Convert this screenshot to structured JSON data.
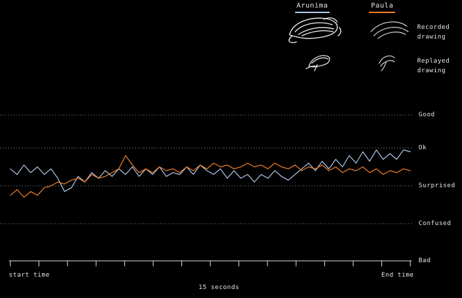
{
  "legend": {
    "items": [
      {
        "label": "Arunima",
        "color": "#aec7e8"
      },
      {
        "label": "Paula",
        "color": "#f07e26"
      }
    ]
  },
  "rows": {
    "recorded_label": "Recorded drawing",
    "replayed_label": "Replayed drawing"
  },
  "axis": {
    "start_label": "start time",
    "end_label": "End time",
    "duration_label": "15 seconds"
  },
  "chart_data": {
    "type": "line",
    "title": "",
    "x_range_seconds": [
      0,
      15
    ],
    "xlabel": "15 seconds",
    "y_categories": [
      "Bad",
      "Confused",
      "Surprised",
      "Ok",
      "Good"
    ],
    "y_value_map": {
      "Bad": 0,
      "Confused": 1,
      "Surprised": 2,
      "Ok": 3,
      "Good": 4
    },
    "grid": "dotted horizontal lines at each category level",
    "legend_position": "top",
    "series": [
      {
        "name": "Arunima",
        "color": "#aec7e8",
        "values": [
          2.45,
          2.3,
          2.55,
          2.35,
          2.5,
          2.3,
          2.45,
          2.2,
          1.85,
          1.95,
          2.25,
          2.1,
          2.35,
          2.2,
          2.4,
          2.25,
          2.45,
          2.3,
          2.5,
          2.25,
          2.45,
          2.3,
          2.5,
          2.25,
          2.35,
          2.3,
          2.5,
          2.3,
          2.55,
          2.4,
          2.3,
          2.45,
          2.2,
          2.4,
          2.2,
          2.3,
          2.1,
          2.3,
          2.2,
          2.4,
          2.25,
          2.15,
          2.3,
          2.45,
          2.6,
          2.4,
          2.65,
          2.45,
          2.7,
          2.5,
          2.8,
          2.6,
          2.9,
          2.65,
          2.95,
          2.7,
          2.85,
          2.7,
          2.95,
          2.9
        ]
      },
      {
        "name": "Paula",
        "color": "#f07e26",
        "values": [
          1.75,
          1.9,
          1.7,
          1.85,
          1.75,
          1.95,
          2.0,
          2.1,
          2.05,
          2.15,
          2.2,
          2.1,
          2.3,
          2.2,
          2.25,
          2.35,
          2.45,
          2.8,
          2.55,
          2.35,
          2.45,
          2.35,
          2.5,
          2.4,
          2.45,
          2.35,
          2.5,
          2.4,
          2.55,
          2.45,
          2.6,
          2.5,
          2.55,
          2.45,
          2.5,
          2.6,
          2.5,
          2.55,
          2.45,
          2.6,
          2.5,
          2.45,
          2.55,
          2.4,
          2.5,
          2.45,
          2.55,
          2.4,
          2.5,
          2.35,
          2.45,
          2.4,
          2.5,
          2.35,
          2.45,
          2.3,
          2.4,
          2.35,
          2.45,
          2.4
        ]
      }
    ]
  }
}
